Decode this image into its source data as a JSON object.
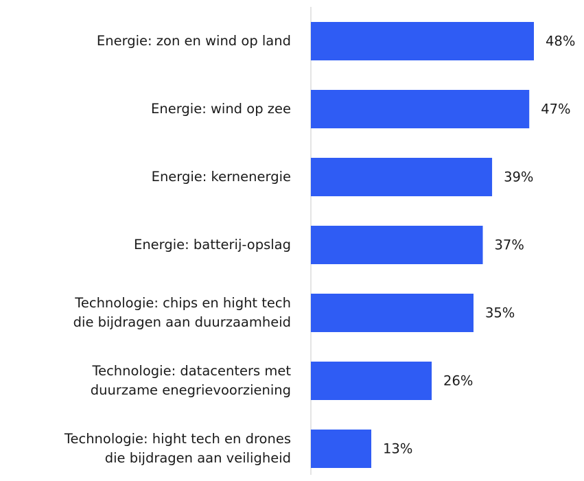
{
  "chart_data": {
    "type": "bar",
    "orientation": "horizontal",
    "categories": [
      "Energie: zon en wind op land",
      "Energie: wind op zee",
      "Energie: kernenergie",
      "Energie: batterij-opslag",
      "Technologie: chips en hight tech\ndie bijdragen aan duurzaamheid",
      "Technologie: datacenters met\nduurzame enegrievoorziening",
      "Technologie: hight tech en drones\ndie bijdragen aan veiligheid"
    ],
    "values": [
      48,
      47,
      39,
      37,
      35,
      26,
      13
    ],
    "value_labels": [
      "48%",
      "47%",
      "39%",
      "37%",
      "35%",
      "26%",
      "13%"
    ],
    "color": "#2f5cf4"
  }
}
